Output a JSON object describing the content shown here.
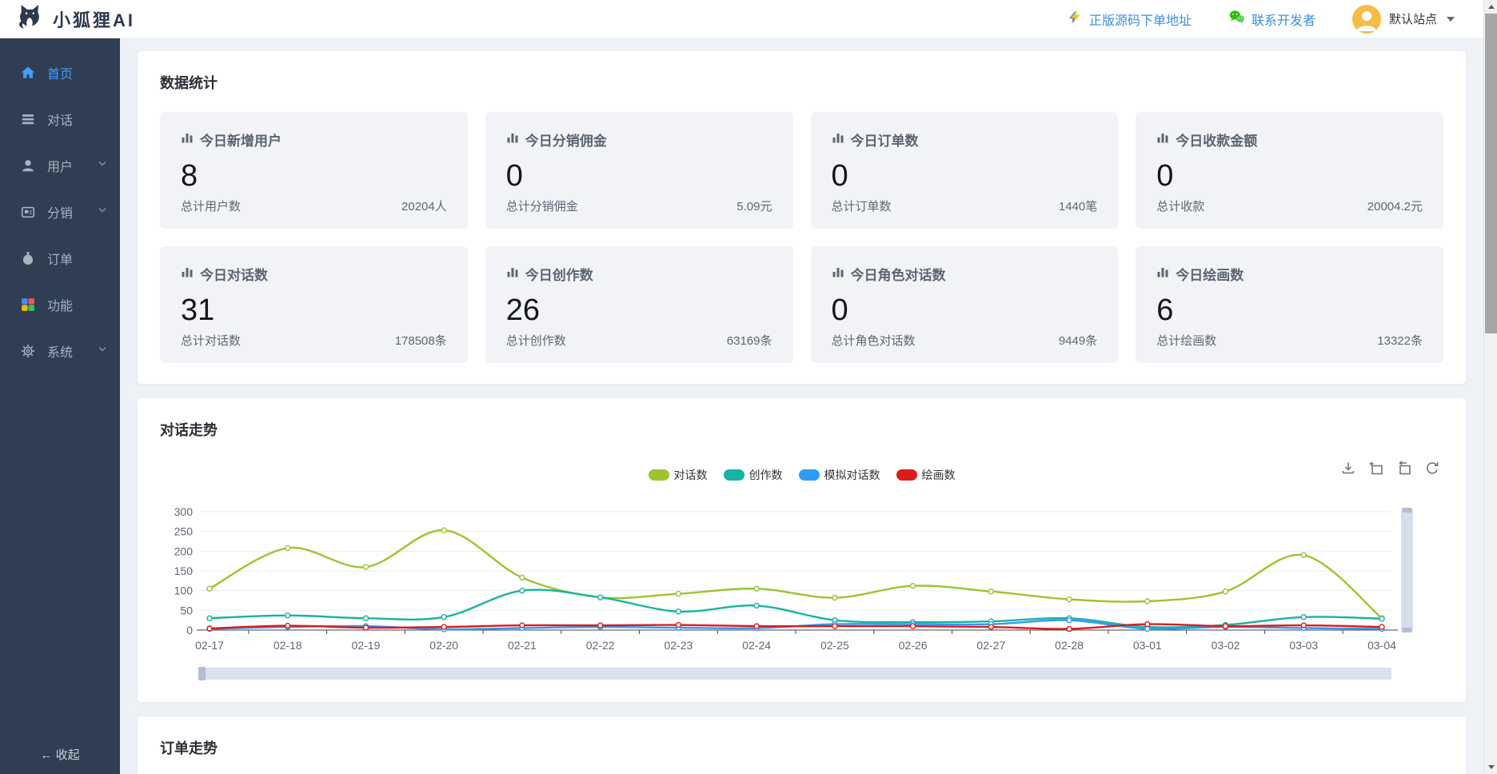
{
  "header": {
    "logo_text": "小狐狸AI",
    "order_link_label": "正版源码下单地址",
    "contact_link_label": "联系开发者",
    "site_name": "默认站点"
  },
  "sidebar": {
    "items": [
      {
        "label": "首页",
        "icon": "home-icon",
        "active": true,
        "has_submenu": false
      },
      {
        "label": "对话",
        "icon": "chat-list-icon",
        "active": false,
        "has_submenu": false
      },
      {
        "label": "用户",
        "icon": "user-icon",
        "active": false,
        "has_submenu": true
      },
      {
        "label": "分销",
        "icon": "distribution-icon",
        "active": false,
        "has_submenu": true
      },
      {
        "label": "订单",
        "icon": "order-moneybag-icon",
        "active": false,
        "has_submenu": false
      },
      {
        "label": "功能",
        "icon": "features-grid-icon",
        "active": false,
        "has_submenu": false
      },
      {
        "label": "系统",
        "icon": "system-gear-icon",
        "active": false,
        "has_submenu": true
      }
    ],
    "collapse_label": "收起"
  },
  "stats": {
    "section_title": "数据统计",
    "cards": [
      {
        "title": "今日新增用户",
        "value": "8",
        "total_label": "总计用户数",
        "total_value": "20204人"
      },
      {
        "title": "今日分销佣金",
        "value": "0",
        "total_label": "总计分销佣金",
        "total_value": "5.09元"
      },
      {
        "title": "今日订单数",
        "value": "0",
        "total_label": "总计订单数",
        "total_value": "1440笔"
      },
      {
        "title": "今日收款金额",
        "value": "0",
        "total_label": "总计收款",
        "total_value": "20004.2元"
      },
      {
        "title": "今日对话数",
        "value": "31",
        "total_label": "总计对话数",
        "total_value": "178508条"
      },
      {
        "title": "今日创作数",
        "value": "26",
        "total_label": "总计创作数",
        "total_value": "63169条"
      },
      {
        "title": "今日角色对话数",
        "value": "0",
        "total_label": "总计角色对话数",
        "total_value": "9449条"
      },
      {
        "title": "今日绘画数",
        "value": "6",
        "total_label": "总计绘画数",
        "total_value": "13322条"
      }
    ]
  },
  "trend": {
    "section_title": "对话走势"
  },
  "orders": {
    "section_title": "订单走势"
  },
  "icons": {
    "header": [
      "lightning-icon",
      "wechat-icon",
      "avatar-person-icon",
      "caret-down-icon"
    ],
    "stat_card": "bar-chart-icon",
    "toolbox": [
      "save-image-icon",
      "data-zoom-select-icon",
      "zoom-reset-icon",
      "restore-icon"
    ],
    "scrollbar": [
      "scroll-up-icon",
      "scroll-down-icon"
    ]
  },
  "colors": {
    "accent": "#409eff",
    "sidebar_bg": "#2f3e52",
    "card_tile_bg": "#f1f3f6",
    "avatar_bg": "#f6bd42",
    "link_blue": "#3a8ee6"
  },
  "chart_data": {
    "type": "line",
    "title": "对话走势",
    "grid": true,
    "legend_position": "top-center",
    "smooth": true,
    "xlabel": "",
    "ylabel": "",
    "ylim": [
      0,
      300
    ],
    "yticks": [
      0,
      50,
      100,
      150,
      200,
      250,
      300
    ],
    "categories": [
      "02-17",
      "02-18",
      "02-19",
      "02-20",
      "02-21",
      "02-22",
      "02-23",
      "02-24",
      "02-25",
      "02-26",
      "02-27",
      "02-28",
      "03-01",
      "03-02",
      "03-03",
      "03-04"
    ],
    "series": [
      {
        "name": "对话数",
        "color": "#9dc42e",
        "values": [
          105,
          208,
          160,
          253,
          133,
          83,
          92,
          105,
          82,
          112,
          98,
          78,
          73,
          98,
          190,
          30
        ]
      },
      {
        "name": "创作数",
        "color": "#17b3a3",
        "values": [
          30,
          37,
          30,
          33,
          100,
          83,
          47,
          62,
          25,
          20,
          22,
          30,
          8,
          13,
          33,
          29
        ]
      },
      {
        "name": "模拟对话数",
        "color": "#2f9bf4",
        "values": [
          3,
          8,
          10,
          2,
          5,
          8,
          6,
          5,
          15,
          15,
          15,
          25,
          3,
          8,
          5,
          3
        ]
      },
      {
        "name": "绘画数",
        "color": "#dd1b1b",
        "values": [
          4,
          11,
          6,
          8,
          12,
          12,
          13,
          10,
          10,
          10,
          8,
          3,
          15,
          10,
          12,
          8
        ]
      }
    ]
  }
}
